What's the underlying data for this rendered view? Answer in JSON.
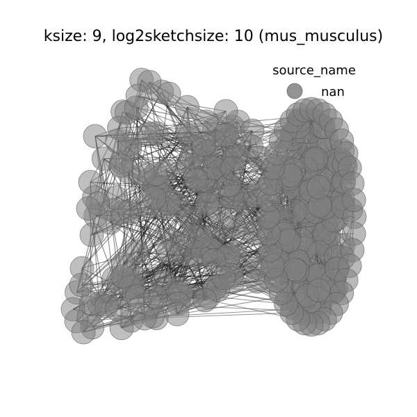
{
  "title": "ksize: 9, log2sketchsize: 10 (mus_musculus)",
  "legend": {
    "title": "source_name",
    "entries": [
      {
        "label": "nan",
        "color": "#808080"
      }
    ]
  },
  "graph": {
    "node_color": "#808080",
    "node_edge_color": "#555555",
    "edge_color": "#222222",
    "left_cluster_nodes": 130,
    "right_cluster_nodes": 150
  }
}
